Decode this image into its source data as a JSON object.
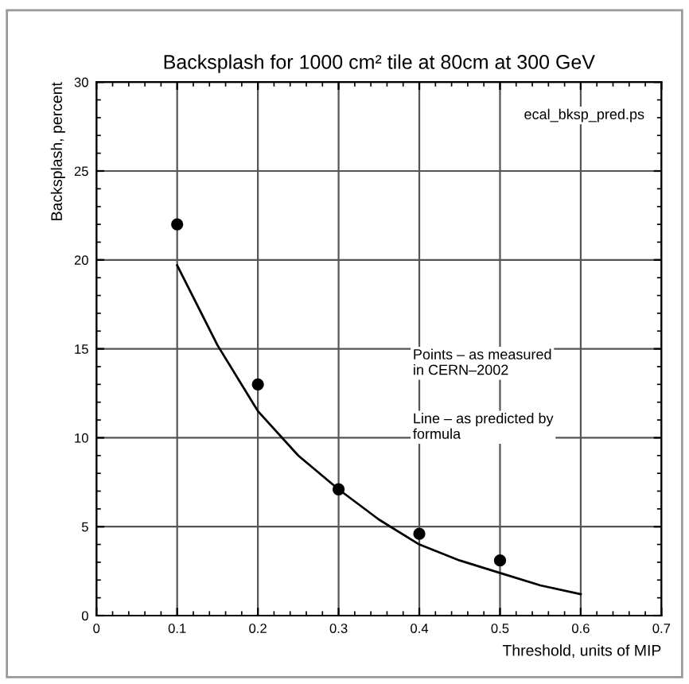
{
  "chart_data": {
    "type": "scatter",
    "title": "Backsplash for 1000 cm² tile at 80cm at 300 GeV",
    "xlabel": "Threshold, units of MIP",
    "ylabel": "Backsplash, percent",
    "xlim": [
      0,
      0.7
    ],
    "ylim": [
      0,
      30
    ],
    "xticks": [
      0,
      0.1,
      0.2,
      0.3,
      0.4,
      0.5,
      0.6,
      0.7
    ],
    "yticks": [
      0,
      5,
      10,
      15,
      20,
      25,
      30
    ],
    "grid": true,
    "series": [
      {
        "marker": "circle",
        "color": "#000000",
        "x": [
          0.1,
          0.2,
          0.3,
          0.4,
          0.5
        ],
        "values": [
          22,
          13,
          7.1,
          4.6,
          3.1
        ]
      },
      {
        "type": "line",
        "color": "#000000",
        "x": [
          0.1,
          0.15,
          0.2,
          0.25,
          0.3,
          0.35,
          0.4,
          0.45,
          0.5,
          0.55,
          0.6
        ],
        "values": [
          19.7,
          15.2,
          11.5,
          9.0,
          7.1,
          5.4,
          4.0,
          3.1,
          2.4,
          1.7,
          1.2
        ]
      }
    ],
    "annotations": [
      "ecal_bksp_pred.ps",
      "Points – as measured\nin CERN–2002",
      "Line – as predicted by\nformula"
    ]
  }
}
